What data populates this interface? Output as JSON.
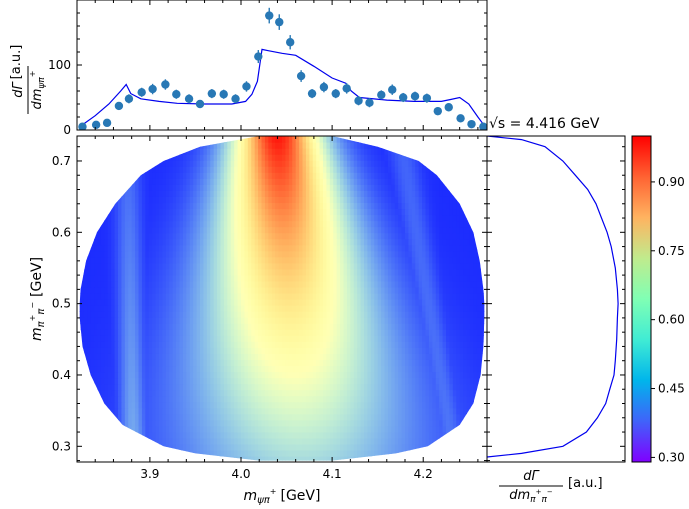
{
  "chart_data": [
    {
      "panel": "top-projection",
      "type": "scatter",
      "ylabel_num": "dΓ",
      "ylabel_den": "dm",
      "ylabel_den_sub": "ψπ",
      "ylabel_den_sup": "+",
      "ylabel_unit": "[a.u.]",
      "xlim": [
        3.82,
        4.27
      ],
      "ylim": [
        0,
        200
      ],
      "yticks": [
        {
          "value": 0,
          "label": "0"
        },
        {
          "value": 100,
          "label": "100"
        }
      ],
      "points": {
        "name": "data",
        "x": [
          3.826,
          3.841,
          3.853,
          3.866,
          3.877,
          3.891,
          3.903,
          3.917,
          3.929,
          3.943,
          3.955,
          3.968,
          3.981,
          3.994,
          4.006,
          4.019,
          4.031,
          4.042,
          4.054,
          4.066,
          4.078,
          4.091,
          4.104,
          4.116,
          4.129,
          4.141,
          4.154,
          4.166,
          4.178,
          4.191,
          4.204,
          4.216,
          4.228,
          4.241,
          4.253,
          4.266
        ],
        "y": [
          5,
          8,
          11,
          37,
          48,
          58,
          63,
          70,
          55,
          48,
          40,
          56,
          55,
          48,
          67,
          113,
          176,
          166,
          135,
          83,
          56,
          66,
          56,
          64,
          45,
          42,
          54,
          62,
          50,
          52,
          49,
          29,
          35,
          18,
          9,
          5
        ],
        "err": [
          4,
          5,
          5,
          6,
          7,
          7,
          8,
          8,
          7,
          7,
          6,
          7,
          7,
          7,
          8,
          10,
          12,
          12,
          11,
          9,
          7,
          8,
          7,
          8,
          7,
          7,
          7,
          8,
          7,
          7,
          7,
          6,
          6,
          5,
          4,
          4
        ]
      },
      "curve": {
        "name": "model",
        "x": [
          3.823,
          3.84,
          3.855,
          3.868,
          3.874,
          3.879,
          3.89,
          3.91,
          3.93,
          3.96,
          3.99,
          4.005,
          4.012,
          4.018,
          4.023,
          4.03,
          4.045,
          4.06,
          4.08,
          4.1,
          4.115,
          4.121,
          4.13,
          4.16,
          4.19,
          4.22,
          4.23,
          4.24,
          4.25,
          4.26,
          4.268
        ],
        "y": [
          5,
          22,
          40,
          60,
          70,
          56,
          48,
          44,
          41,
          40,
          40,
          44,
          55,
          75,
          124,
          122,
          118,
          115,
          98,
          80,
          72,
          60,
          50,
          46,
          44,
          44,
          47,
          50,
          40,
          20,
          5
        ]
      }
    },
    {
      "panel": "dalitz-plot",
      "type": "heatmap",
      "xlabel_main": "m",
      "xlabel_sub": "ψπ",
      "xlabel_sup": "+",
      "xlabel_unit": "[GeV]",
      "ylabel_main": "m",
      "ylabel_sub": "π",
      "ylabel_sup_a": "+",
      "ylabel_sub2": "π",
      "ylabel_sup_b": "−",
      "ylabel_unit": "[GeV]",
      "xlim": [
        3.82,
        4.27
      ],
      "ylim": [
        0.278,
        0.735
      ],
      "xticks": [
        {
          "value": 3.9,
          "label": "3.9"
        },
        {
          "value": 4.0,
          "label": "4.0"
        },
        {
          "value": 4.1,
          "label": "4.1"
        },
        {
          "value": 4.2,
          "label": "4.2"
        }
      ],
      "yticks": [
        {
          "value": 0.3,
          "label": "0.3"
        },
        {
          "value": 0.4,
          "label": "0.4"
        },
        {
          "value": 0.5,
          "label": "0.5"
        },
        {
          "value": 0.6,
          "label": "0.6"
        },
        {
          "value": 0.7,
          "label": "0.7"
        }
      ],
      "boundary": {
        "y": [
          0.28,
          0.29,
          0.3,
          0.33,
          0.36,
          0.4,
          0.44,
          0.48,
          0.5,
          0.52,
          0.56,
          0.6,
          0.64,
          0.68,
          0.7,
          0.72,
          0.735
        ],
        "x_left": [
          4.02,
          3.95,
          3.915,
          3.87,
          3.85,
          3.835,
          3.826,
          3.823,
          3.823,
          3.824,
          3.83,
          3.842,
          3.862,
          3.89,
          3.915,
          3.955,
          4.02
        ],
        "x_right": [
          4.1,
          4.17,
          4.205,
          4.24,
          4.255,
          4.263,
          4.266,
          4.267,
          4.267,
          4.266,
          4.262,
          4.255,
          4.24,
          4.215,
          4.195,
          4.15,
          4.1
        ]
      },
      "bands": [
        {
          "name": "central-band",
          "x_at_ymin": 4.065,
          "x_at_ymax": 4.04,
          "width_at_ymin": 0.095,
          "width_at_ymax": 0.035,
          "strength_at_ymin": 0.52,
          "strength_at_ymax": 0.98
        },
        {
          "name": "band-left-3.88",
          "x_at_ymin": 3.882,
          "x_at_ymax": 3.875,
          "width_at_ymin": 0.01,
          "width_at_ymax": 0.01,
          "strength_at_ymin": 0.46,
          "strength_at_ymax": 0.38
        },
        {
          "name": "band-right-4.2",
          "x_at_ymin": 4.235,
          "x_at_ymax": 4.175,
          "width_at_ymin": 0.01,
          "width_at_ymax": 0.011,
          "strength_at_ymin": 0.4,
          "strength_at_ymax": 0.38
        }
      ],
      "background_level": 0.33
    },
    {
      "panel": "right-projection",
      "type": "line",
      "xlabel_num": "dΓ",
      "xlabel_den": "dm",
      "xlabel_den_sub": "π",
      "xlabel_den_sup_a": "+",
      "xlabel_den_sub2": "π",
      "xlabel_den_sup_b": "−",
      "xlabel_unit": "[a.u.]",
      "annotation": "√s = 4.416 GeV",
      "xlim": [
        0,
        1
      ],
      "ylim": [
        0.278,
        0.735
      ],
      "curve": {
        "name": "model",
        "y": [
          0.285,
          0.29,
          0.3,
          0.32,
          0.34,
          0.36,
          0.38,
          0.4,
          0.42,
          0.45,
          0.48,
          0.5,
          0.52,
          0.55,
          0.58,
          0.6,
          0.62,
          0.64,
          0.66,
          0.68,
          0.7,
          0.72,
          0.73,
          0.735
        ],
        "x": [
          0,
          0.25,
          0.55,
          0.72,
          0.8,
          0.86,
          0.89,
          0.92,
          0.93,
          0.94,
          0.945,
          0.95,
          0.945,
          0.93,
          0.9,
          0.87,
          0.83,
          0.79,
          0.73,
          0.64,
          0.55,
          0.42,
          0.25,
          0
        ]
      }
    },
    {
      "panel": "colorbar",
      "type": "colorbar",
      "range": [
        0.29,
        1.0
      ],
      "ticks": [
        {
          "value": 0.3,
          "label": "0.30"
        },
        {
          "value": 0.45,
          "label": "0.45"
        },
        {
          "value": 0.6,
          "label": "0.60"
        },
        {
          "value": 0.75,
          "label": "0.75"
        },
        {
          "value": 0.9,
          "label": "0.90"
        }
      ],
      "colormap": "rainbow"
    }
  ],
  "colors": {
    "marker": "#2878b5",
    "model_line": "#0000ee",
    "axes": "#000000"
  }
}
